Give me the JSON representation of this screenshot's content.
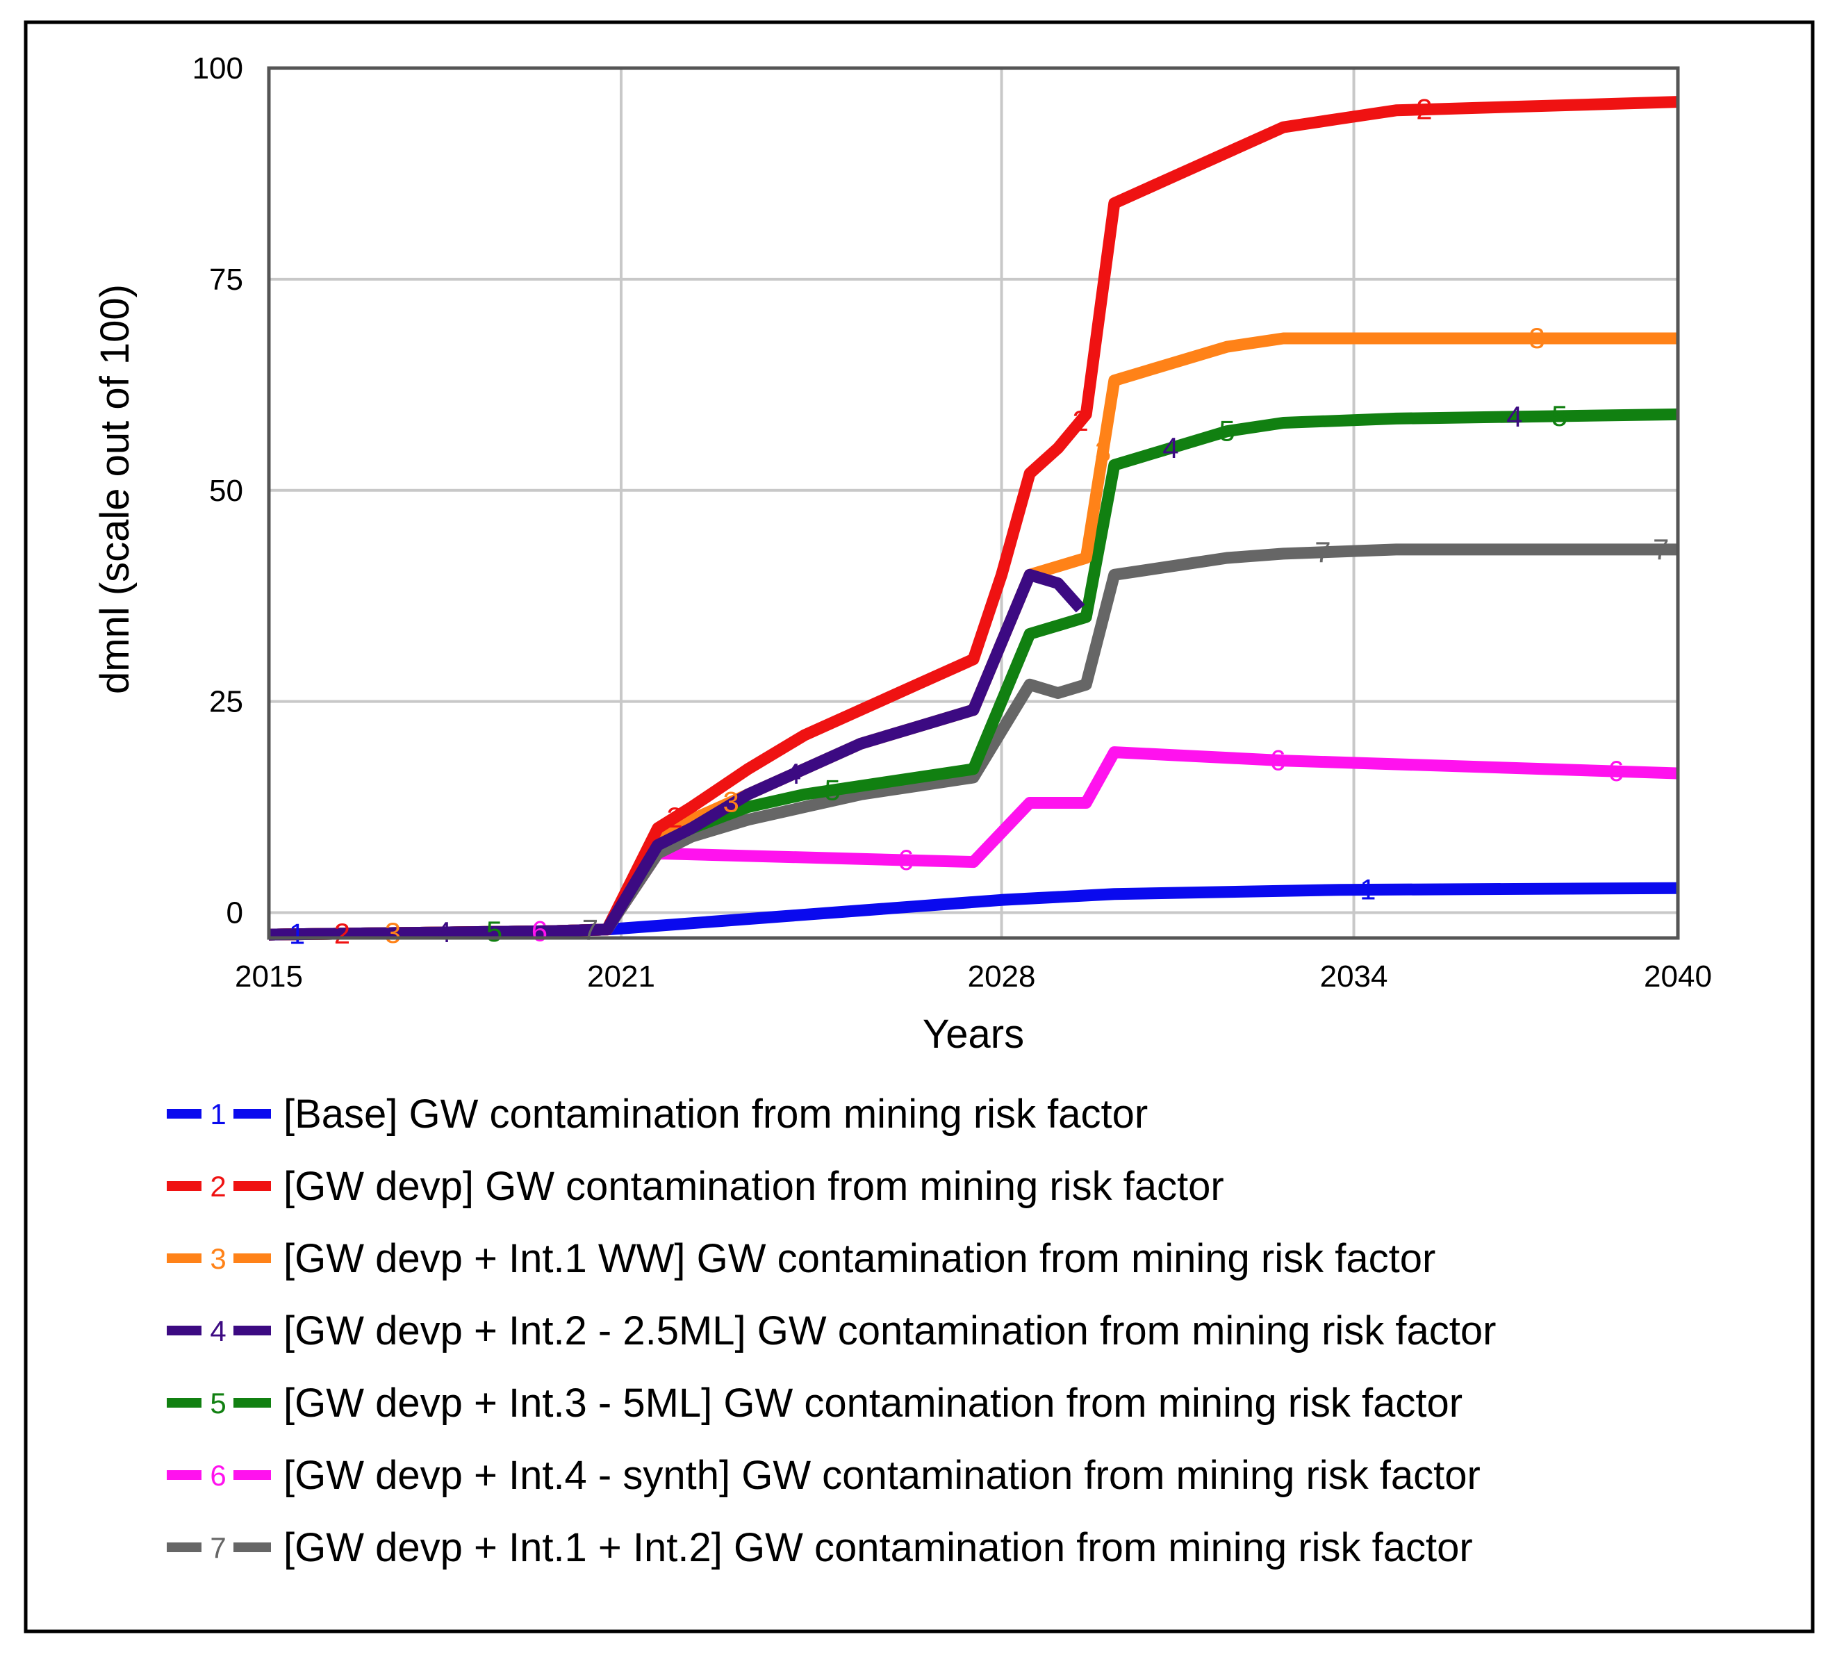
{
  "chart_data": {
    "type": "line",
    "xlabel": "Years",
    "ylabel": "dmnl (scale out of 100)",
    "xlim": [
      2015,
      2040
    ],
    "ylim": [
      -3,
      100
    ],
    "x_ticks": [
      {
        "value": 2015,
        "label": "2015"
      },
      {
        "value": 2021.25,
        "label": "2021"
      },
      {
        "value": 2028,
        "label": "2028"
      },
      {
        "value": 2034.25,
        "label": "2034"
      },
      {
        "value": 2040,
        "label": "2040"
      }
    ],
    "y_ticks": [
      {
        "value": 100,
        "label": "100"
      },
      {
        "value": 75,
        "label": "75"
      },
      {
        "value": 50,
        "label": "50"
      },
      {
        "value": 25,
        "label": "25"
      },
      {
        "value": 0,
        "label": "0"
      }
    ],
    "series": [
      {
        "id": "1",
        "name": "[Base] GW contamination from mining risk factor",
        "color": "#0a0aee",
        "points": [
          [
            2015,
            -2.6
          ],
          [
            2020,
            -2.2
          ],
          [
            2021,
            -2.0
          ],
          [
            2022,
            -1.5
          ],
          [
            2025,
            0.0
          ],
          [
            2028,
            1.5
          ],
          [
            2030,
            2.2
          ],
          [
            2034,
            2.7
          ],
          [
            2040,
            2.9
          ]
        ],
        "markers": [
          2015.5,
          2034.5
        ]
      },
      {
        "id": "2",
        "name": "[GW devp] GW contamination from mining risk factor",
        "color": "#ef1212",
        "points": [
          [
            2015,
            -2.6
          ],
          [
            2020,
            -2.2
          ],
          [
            2021,
            -2.0
          ],
          [
            2021.9,
            10
          ],
          [
            2022.5,
            12.5
          ],
          [
            2023.5,
            17
          ],
          [
            2024.5,
            21
          ],
          [
            2025.5,
            24
          ],
          [
            2026.5,
            27
          ],
          [
            2027.5,
            30
          ],
          [
            2028,
            40
          ],
          [
            2028.5,
            52
          ],
          [
            2029,
            55
          ],
          [
            2029.5,
            59
          ],
          [
            2030,
            84
          ],
          [
            2031,
            87
          ],
          [
            2032,
            90
          ],
          [
            2033,
            93
          ],
          [
            2034,
            94
          ],
          [
            2035,
            95
          ],
          [
            2040,
            96
          ]
        ],
        "markers": [
          2016.3,
          2022.2,
          2029.4,
          2035.5
        ]
      },
      {
        "id": "3",
        "name": "[GW devp + Int.1 WW] GW contamination from mining risk factor",
        "color": "#ff8218",
        "points": [
          [
            2015,
            -2.6
          ],
          [
            2020,
            -2.2
          ],
          [
            2021,
            -2.0
          ],
          [
            2021.9,
            9
          ],
          [
            2022.5,
            11
          ],
          [
            2023.5,
            14
          ],
          [
            2024.5,
            17
          ],
          [
            2025.5,
            20
          ],
          [
            2026.5,
            22
          ],
          [
            2027.5,
            24
          ],
          [
            2028.5,
            40
          ],
          [
            2029,
            41
          ],
          [
            2029.5,
            42
          ],
          [
            2030,
            63
          ],
          [
            2031,
            65
          ],
          [
            2032,
            67
          ],
          [
            2033,
            68
          ],
          [
            2035,
            68
          ],
          [
            2040,
            68
          ]
        ],
        "markers": [
          2017.2,
          2023.2,
          2029.8,
          2037.5
        ]
      },
      {
        "id": "4",
        "name": "[GW devp + Int.2 - 2.5ML] GW contamination from mining risk factor",
        "color": "#3c0a82",
        "points": [
          [
            2015,
            -2.6
          ],
          [
            2020,
            -2.2
          ],
          [
            2021,
            -2.0
          ],
          [
            2021.9,
            8
          ],
          [
            2022.5,
            10
          ],
          [
            2023.5,
            14
          ],
          [
            2024.5,
            17
          ],
          [
            2025.5,
            20
          ],
          [
            2026.5,
            22
          ],
          [
            2027.5,
            24
          ],
          [
            2028.5,
            40
          ],
          [
            2029,
            39
          ],
          [
            2029.4,
            36
          ]
        ],
        "markers": [
          2018.1,
          2024.3
        ]
      },
      {
        "id": "4b",
        "name": "",
        "color": "#3c0a82",
        "hidden_in_legend": true,
        "points": [],
        "markers": [
          2031,
          2037.1
        ]
      },
      {
        "id": "5",
        "name": "[GW devp + Int.3 - 5ML] GW contamination from mining risk factor",
        "color": "#118011",
        "points": [
          [
            2015,
            -2.6
          ],
          [
            2020,
            -2.2
          ],
          [
            2021,
            -2.0
          ],
          [
            2021.9,
            8
          ],
          [
            2022.5,
            10
          ],
          [
            2023.5,
            12.5
          ],
          [
            2024.5,
            14
          ],
          [
            2025.5,
            15
          ],
          [
            2026.5,
            16
          ],
          [
            2027.5,
            17
          ],
          [
            2028.5,
            33
          ],
          [
            2029,
            34
          ],
          [
            2029.5,
            35
          ],
          [
            2030,
            53
          ],
          [
            2031,
            55
          ],
          [
            2032,
            57
          ],
          [
            2033,
            58
          ],
          [
            2035,
            58.5
          ],
          [
            2040,
            59
          ]
        ],
        "markers": [
          2019.0,
          2025.0,
          2032,
          2037.9
        ]
      },
      {
        "id": "6",
        "name": "[GW devp + Int.4 - synth] GW contamination from mining risk factor",
        "color": "#ff12ee",
        "points": [
          [
            2015,
            -2.6
          ],
          [
            2020,
            -2.2
          ],
          [
            2021,
            -2.0
          ],
          [
            2021.9,
            7
          ],
          [
            2027.5,
            6
          ],
          [
            2028.5,
            13
          ],
          [
            2029.5,
            13
          ],
          [
            2030,
            19
          ],
          [
            2033,
            18
          ],
          [
            2040,
            16.5
          ]
        ],
        "markers": [
          2019.8,
          2026.3,
          2032.9,
          2038.9
        ]
      },
      {
        "id": "7",
        "name": "[GW devp + Int.1 + Int.2] GW contamination from mining risk factor",
        "color": "#666666",
        "points": [
          [
            2015,
            -2.6
          ],
          [
            2020,
            -2.2
          ],
          [
            2021,
            -2.0
          ],
          [
            2021.9,
            7
          ],
          [
            2022.5,
            9
          ],
          [
            2023.5,
            11
          ],
          [
            2024.5,
            12.5
          ],
          [
            2025.5,
            14
          ],
          [
            2026.5,
            15
          ],
          [
            2027.5,
            16
          ],
          [
            2028.5,
            27
          ],
          [
            2029,
            26
          ],
          [
            2029.5,
            27
          ],
          [
            2030,
            40
          ],
          [
            2031,
            41
          ],
          [
            2032,
            42
          ],
          [
            2033,
            42.5
          ],
          [
            2035,
            43
          ],
          [
            2040,
            43
          ]
        ],
        "markers": [
          2020.7,
          2033.7,
          2039.7
        ]
      }
    ],
    "legend": [
      {
        "id": "1",
        "label": "[Base] GW contamination from mining risk factor",
        "color": "#0a0aee"
      },
      {
        "id": "2",
        "label": "[GW devp] GW contamination from mining risk factor",
        "color": "#ef1212"
      },
      {
        "id": "3",
        "label": "[GW devp + Int.1 WW] GW contamination from mining risk factor",
        "color": "#ff8218"
      },
      {
        "id": "4",
        "label": "[GW devp + Int.2 - 2.5ML] GW contamination from mining risk factor",
        "color": "#3c0a82"
      },
      {
        "id": "5",
        "label": "[GW devp + Int.3 - 5ML] GW contamination from mining risk factor",
        "color": "#118011"
      },
      {
        "id": "6",
        "label": "[GW devp + Int.4 - synth] GW contamination from mining risk factor",
        "color": "#ff12ee"
      },
      {
        "id": "7",
        "label": "[GW devp + Int.1 + Int.2] GW contamination from mining risk factor",
        "color": "#666666"
      }
    ],
    "legend_position": "bottom"
  }
}
